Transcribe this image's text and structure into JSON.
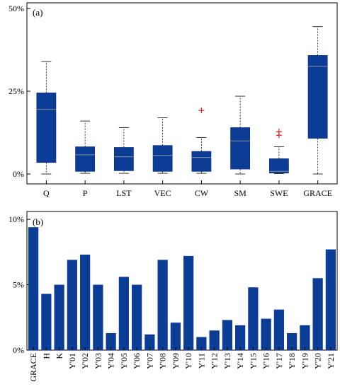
{
  "chart_data": [
    {
      "type": "box",
      "panel_label": "(a)",
      "categories": [
        "Q",
        "P",
        "LST",
        "VEC",
        "CW",
        "SM",
        "SWE",
        "GRACE"
      ],
      "ylim": [
        0,
        50
      ],
      "yticks": [
        0,
        25,
        50
      ],
      "ytick_labels": [
        "0%",
        "25%",
        "50%"
      ],
      "box_color": "#0c3d96",
      "median_color": "#8a8f9a",
      "outlier_color": "#e02020",
      "boxes": [
        {
          "min": 0,
          "q1": 3.5,
          "median": 19.5,
          "q3": 24.5,
          "max": 34,
          "outliers": []
        },
        {
          "min": 0.2,
          "q1": 0.8,
          "median": 5.8,
          "q3": 8.2,
          "max": 16,
          "outliers": []
        },
        {
          "min": 0.2,
          "q1": 1.0,
          "median": 5.2,
          "q3": 8.0,
          "max": 14,
          "outliers": []
        },
        {
          "min": 0.2,
          "q1": 0.8,
          "median": 5.6,
          "q3": 8.6,
          "max": 17,
          "outliers": []
        },
        {
          "min": 0.2,
          "q1": 0.8,
          "median": 5.0,
          "q3": 6.8,
          "max": 11,
          "outliers": [
            19.2
          ]
        },
        {
          "min": 0,
          "q1": 1.5,
          "median": 10.0,
          "q3": 14.0,
          "max": 23.5,
          "outliers": []
        },
        {
          "min": 0.1,
          "q1": 0.3,
          "median": 0.8,
          "q3": 4.6,
          "max": 8.2,
          "outliers": [
            11.7,
            12.8
          ]
        },
        {
          "min": 0,
          "q1": 10.8,
          "median": 32.5,
          "q3": 35.8,
          "max": 44.5,
          "outliers": []
        }
      ]
    },
    {
      "type": "bar",
      "panel_label": "(b)",
      "categories": [
        "GRACE",
        "H",
        "K",
        "Y'01",
        "Y'02",
        "Y'03",
        "Y'04",
        "Y'05",
        "Y'06",
        "Y'07",
        "Y'08",
        "Y'09",
        "Y'10",
        "Y'11",
        "Y'12",
        "Y'13",
        "Y'14",
        "Y'15",
        "Y'16",
        "Y'17",
        "Y'18",
        "Y'19",
        "Y'20",
        "Y'21"
      ],
      "values": [
        9.4,
        4.3,
        5.0,
        6.9,
        7.3,
        5.0,
        1.3,
        5.6,
        5.0,
        1.2,
        6.9,
        2.1,
        7.2,
        1.0,
        1.5,
        2.3,
        1.9,
        4.8,
        2.4,
        3.1,
        1.3,
        1.9,
        5.5,
        7.7
      ],
      "ylim": [
        0,
        10.6
      ],
      "yticks": [
        0,
        5,
        10
      ],
      "ytick_labels": [
        "0%",
        "5%",
        "10%"
      ],
      "bar_color": "#0c3d96"
    }
  ]
}
